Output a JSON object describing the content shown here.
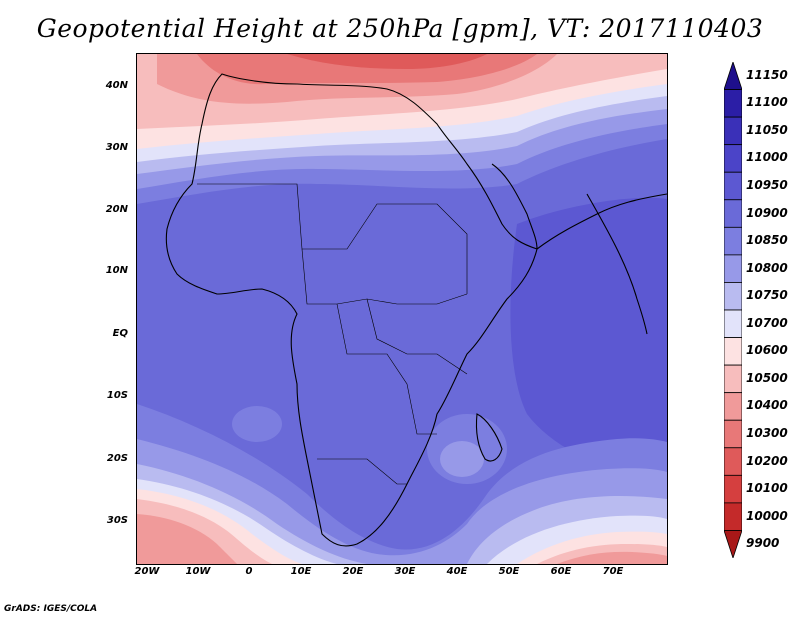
{
  "title": "Geopotential Height at 250hPa [gpm], VT: 2017110403",
  "credit": "GrADS: IGES/COLA",
  "lat_labels": [
    "40N",
    "30N",
    "20N",
    "10N",
    "EQ",
    "10S",
    "20S",
    "30S"
  ],
  "lon_labels": [
    "20W",
    "10W",
    "0",
    "10E",
    "20E",
    "30E",
    "40E",
    "50E",
    "60E",
    "70E"
  ],
  "colorbar": {
    "levels": [
      "11150",
      "11100",
      "11050",
      "11000",
      "10950",
      "10900",
      "10850",
      "10800",
      "10750",
      "10700",
      "10600",
      "10500",
      "10400",
      "10300",
      "10200",
      "10100",
      "10000",
      "9900"
    ],
    "colors": [
      "#1e0f8c",
      "#2b1ea6",
      "#3a30b8",
      "#4b44c8",
      "#5c58d2",
      "#6a6ad8",
      "#7c7ee0",
      "#9799e8",
      "#b9bbf0",
      "#e2e3fa",
      "#fde2e2",
      "#f7bdbd",
      "#f09a9a",
      "#e87878",
      "#df5a5a",
      "#d53f3f",
      "#c42a2a",
      "#a81818"
    ]
  },
  "chart_data": {
    "type": "heatmap",
    "title": "Geopotential Height at 250hPa [gpm], VT: 2017110403",
    "xlabel": "",
    "ylabel": "",
    "x_ticks": [
      "20W",
      "10W",
      "0",
      "10E",
      "20E",
      "30E",
      "40E",
      "50E",
      "60E",
      "70E"
    ],
    "y_ticks": [
      "40N",
      "30N",
      "20N",
      "10N",
      "EQ",
      "10S",
      "20S",
      "30S"
    ],
    "xlim": [
      -22,
      80
    ],
    "ylim": [
      -37,
      45
    ],
    "contour_levels": [
      9900,
      10000,
      10100,
      10200,
      10300,
      10400,
      10500,
      10600,
      10700,
      10750,
      10800,
      10850,
      10900,
      10950,
      11000,
      11050,
      11100,
      11150
    ]
  }
}
